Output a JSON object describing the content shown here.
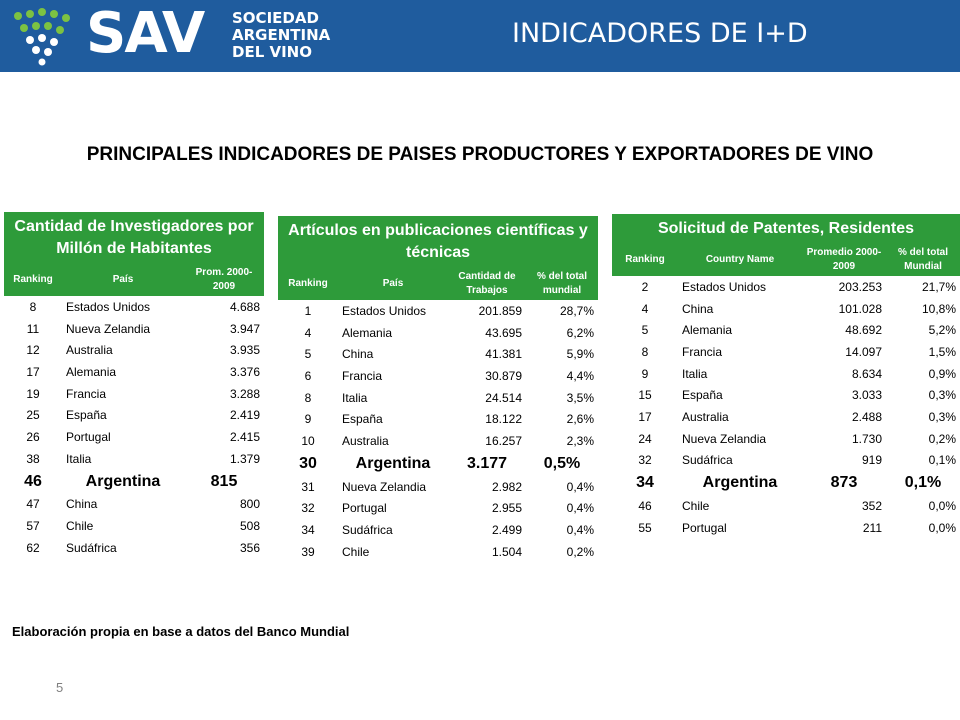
{
  "header": {
    "logo_text": "SAV",
    "logo_sub": [
      "SOCIEDAD",
      "ARGENTINA",
      "DEL VINO"
    ],
    "title": "INDICADORES DE I+D",
    "colors": {
      "bar": "#1f5c9e",
      "table_header": "#2e9b3a",
      "logo_dots": "#7cc242"
    }
  },
  "main_title": "PRINCIPALES INDICADORES DE PAISES PRODUCTORES Y EXPORTADORES DE VINO",
  "tables": [
    {
      "title": "Cantidad de Investigadores por Millón de Habitantes",
      "columns": [
        "Ranking",
        "País",
        "Prom. 2000-2009"
      ],
      "rows": [
        [
          "8",
          "Estados Unidos",
          "4.688"
        ],
        [
          "11",
          "Nueva Zelandia",
          "3.947"
        ],
        [
          "12",
          "Australia",
          "3.935"
        ],
        [
          "17",
          "Alemania",
          "3.376"
        ],
        [
          "19",
          "Francia",
          "3.288"
        ],
        [
          "25",
          "España",
          "2.419"
        ],
        [
          "26",
          "Portugal",
          "2.415"
        ],
        [
          "38",
          "Italia",
          "1.379"
        ]
      ],
      "highlight": [
        "46",
        "Argentina",
        "815"
      ],
      "rows_after": [
        [
          "47",
          "China",
          "800"
        ],
        [
          "57",
          "Chile",
          "508"
        ],
        [
          "62",
          "Sudáfrica",
          "356"
        ]
      ]
    },
    {
      "title": "Artículos en publicaciones científicas y técnicas",
      "columns": [
        "Ranking",
        "País",
        "Cantidad de Trabajos",
        "% del total mundial"
      ],
      "rows": [
        [
          "1",
          "Estados Unidos",
          "201.859",
          "28,7%"
        ],
        [
          "4",
          "Alemania",
          "43.695",
          "6,2%"
        ],
        [
          "5",
          "China",
          "41.381",
          "5,9%"
        ],
        [
          "6",
          "Francia",
          "30.879",
          "4,4%"
        ],
        [
          "8",
          "Italia",
          "24.514",
          "3,5%"
        ],
        [
          "9",
          "España",
          "18.122",
          "2,6%"
        ],
        [
          "10",
          "Australia",
          "16.257",
          "2,3%"
        ]
      ],
      "highlight": [
        "30",
        "Argentina",
        "3.177",
        "0,5%"
      ],
      "rows_after": [
        [
          "31",
          "Nueva Zelandia",
          "2.982",
          "0,4%"
        ],
        [
          "32",
          "Portugal",
          "2.955",
          "0,4%"
        ],
        [
          "34",
          "Sudáfrica",
          "2.499",
          "0,4%"
        ],
        [
          "39",
          "Chile",
          "1.504",
          "0,2%"
        ]
      ]
    },
    {
      "title": "Solicitud de Patentes, Residentes",
      "columns": [
        "Ranking",
        "Country Name",
        "Promedio 2000-2009",
        "% del total Mundial"
      ],
      "rows": [
        [
          "2",
          "Estados Unidos",
          "203.253",
          "21,7%"
        ],
        [
          "4",
          "China",
          "101.028",
          "10,8%"
        ],
        [
          "5",
          "Alemania",
          "48.692",
          "5,2%"
        ],
        [
          "8",
          "Francia",
          "14.097",
          "1,5%"
        ],
        [
          "9",
          "Italia",
          "8.634",
          "0,9%"
        ],
        [
          "15",
          "España",
          "3.033",
          "0,3%"
        ],
        [
          "17",
          "Australia",
          "2.488",
          "0,3%"
        ],
        [
          "24",
          "Nueva Zelandia",
          "1.730",
          "0,2%"
        ],
        [
          "32",
          "Sudáfrica",
          "919",
          "0,1%"
        ]
      ],
      "highlight": [
        "34",
        "Argentina",
        "873",
        "0,1%"
      ],
      "rows_after": [
        [
          "46",
          "Chile",
          "352",
          "0,0%"
        ],
        [
          "55",
          "Portugal",
          "211",
          "0,0%"
        ]
      ]
    }
  ],
  "source": "Elaboración propia en base a datos del Banco Mundial",
  "slide_number": "5"
}
